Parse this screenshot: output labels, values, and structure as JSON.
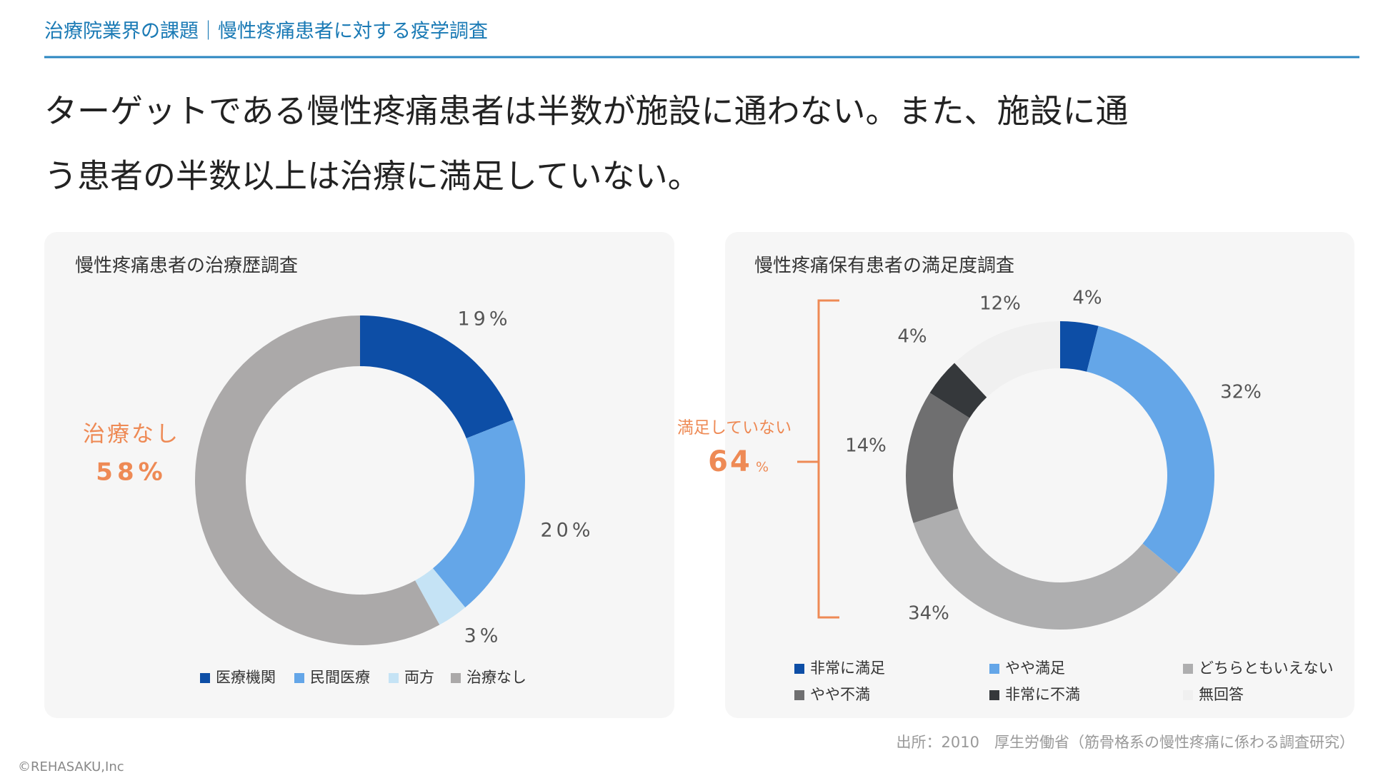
{
  "header": {
    "title": "治療院業界の課題｜慢性疼痛患者に対する疫学調査"
  },
  "headline": [
    "ターゲットである慢性疼痛患者は半数が施設に通わない。また、施設に通",
    "う患者の半数以上は治療に満足していない。"
  ],
  "chart_data": [
    {
      "type": "pie",
      "donut": true,
      "title": "慢性疼痛患者の治療歴調査",
      "categories": [
        "医療機関",
        "民間医療",
        "両方",
        "治療なし"
      ],
      "values": [
        19,
        20,
        3,
        58
      ],
      "value_labels": [
        "19%",
        "20%",
        "3%",
        "58%"
      ],
      "colors": [
        "#0d4ea6",
        "#64a6e8",
        "#c5e3f5",
        "#aba9a9"
      ],
      "highlight_color": "#ee8a55"
    },
    {
      "type": "pie",
      "donut": true,
      "title": "慢性疼痛保有患者の満足度調査",
      "categories": [
        "非常に満足",
        "やや満足",
        "どちらともいえない",
        "やや不満",
        "非常に不満",
        "無回答"
      ],
      "values": [
        4,
        32,
        34,
        14,
        4,
        12
      ],
      "value_labels": [
        "4%",
        "32%",
        "34%",
        "14%",
        "4%",
        "12%"
      ],
      "colors": [
        "#0d4ea6",
        "#64a6e8",
        "#aeaeaf",
        "#6f6f70",
        "#35383b",
        "#f0f0f0"
      ],
      "bracket": {
        "label": "満足していない",
        "value": 64,
        "unit": "%",
        "color": "#ee8a55"
      }
    }
  ],
  "source": "出所：2010　厚生労働省（筋骨格系の慢性疼痛に係わる調査研究）",
  "copyright": "©REHASAKU,Inc"
}
